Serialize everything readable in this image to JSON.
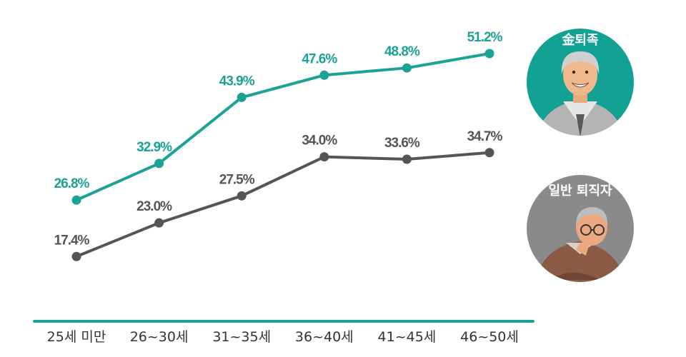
{
  "colors": {
    "series_gold": "#1aa394",
    "series_general": "#555555",
    "axis": "#1aa394",
    "badge_gold_bg": "#12a193",
    "badge_general_bg": "#8a8a8a"
  },
  "chart_data": {
    "type": "line",
    "categories": [
      "25세 미만",
      "26~30세",
      "31~35세",
      "36~40세",
      "41~45세",
      "46~50세"
    ],
    "series": [
      {
        "name": "金퇴족",
        "values": [
          26.8,
          32.9,
          43.9,
          47.6,
          48.8,
          51.2
        ],
        "labels": [
          "26.8%",
          "32.9%",
          "43.9%",
          "47.6%",
          "48.8%",
          "51.2%"
        ]
      },
      {
        "name": "일반 퇴직자",
        "values": [
          17.4,
          23.0,
          27.5,
          34.0,
          33.6,
          34.7
        ],
        "labels": [
          "17.4%",
          "23.0%",
          "27.5%",
          "34.0%",
          "33.6%",
          "34.7%"
        ]
      }
    ],
    "legend": "right",
    "grid": false
  },
  "badges": {
    "gold": {
      "title": "金퇴족",
      "icon": "smiling-elder-man-icon"
    },
    "general": {
      "title": "일반 퇴직자",
      "icon": "worried-elder-man-icon"
    }
  }
}
